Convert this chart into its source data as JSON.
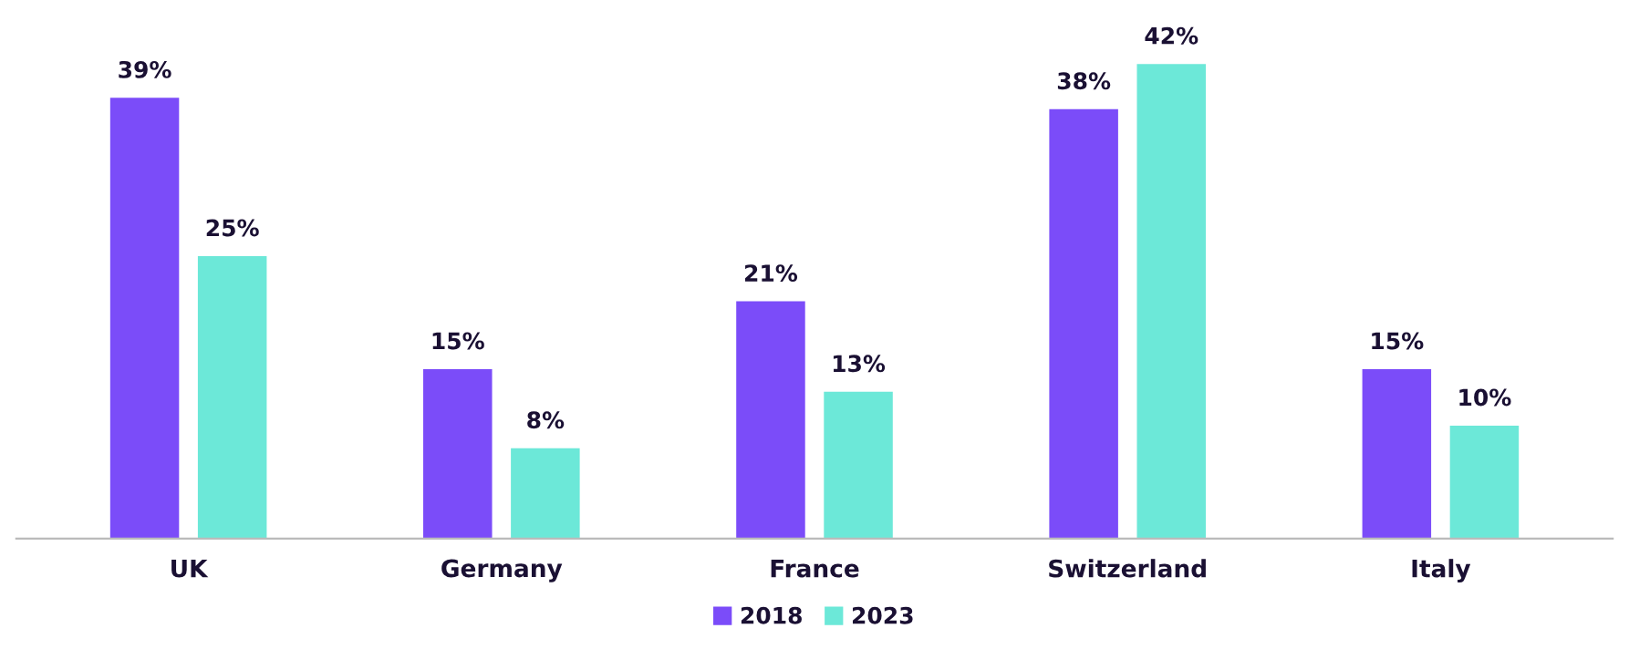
{
  "chart_data": {
    "type": "bar",
    "categories": [
      "UK",
      "Germany",
      "France",
      "Switzerland",
      "Italy"
    ],
    "series": [
      {
        "name": "2018",
        "color": "#7b4cf9",
        "values": [
          39,
          15,
          21,
          38,
          15
        ],
        "value_labels": [
          "39%",
          "15%",
          "21%",
          "38%",
          "15%"
        ]
      },
      {
        "name": "2023",
        "color": "#6ce8d8",
        "values": [
          25,
          8,
          13,
          42,
          10
        ],
        "value_labels": [
          "25%",
          "8%",
          "13%",
          "42%",
          "10%"
        ]
      }
    ],
    "legend": "bottom",
    "grid": false
  }
}
